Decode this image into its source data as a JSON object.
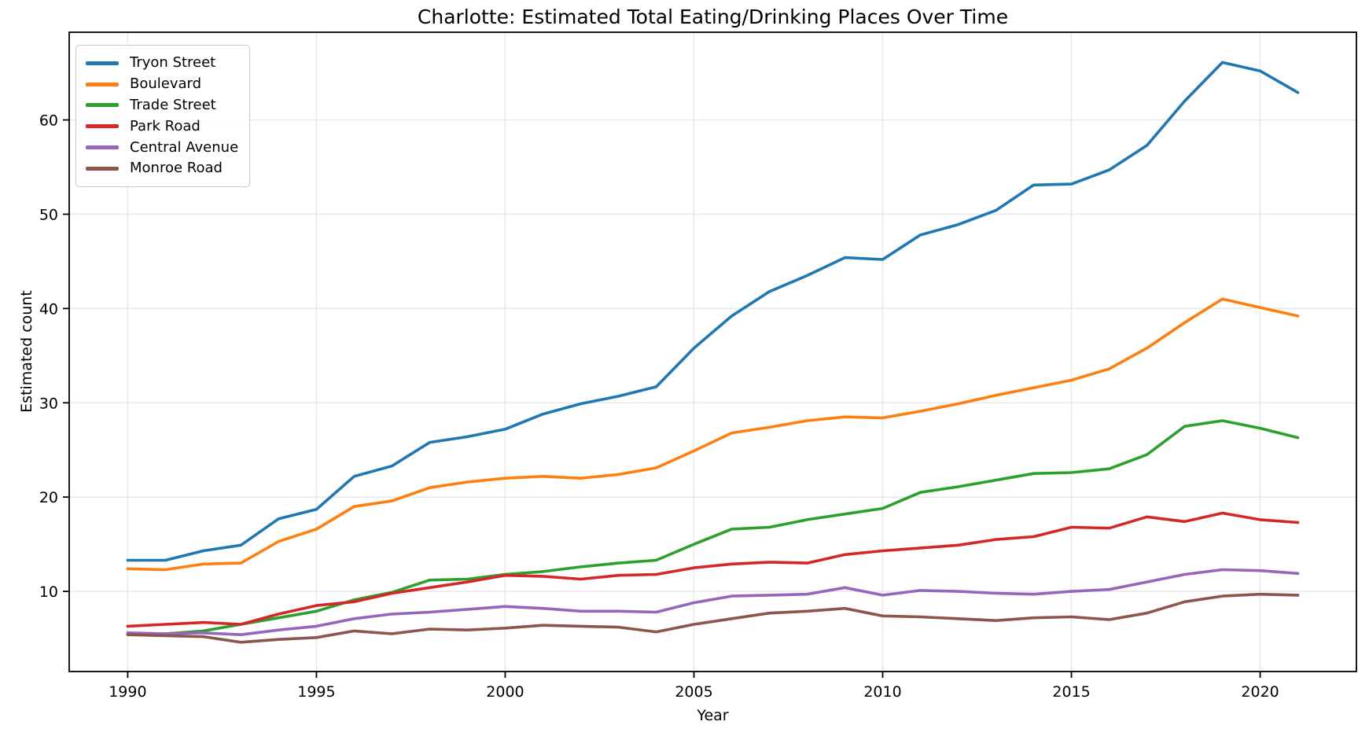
{
  "chart_data": {
    "type": "line",
    "title": "Charlotte: Estimated Total Eating/Drinking Places Over Time",
    "xlabel": "Year",
    "ylabel": "Estimated count",
    "grid": true,
    "legend_position": "upper left",
    "xlim": [
      1988.45,
      2022.55
    ],
    "ylim": [
      1.5,
      69.3
    ],
    "xticks": [
      1990,
      1995,
      2000,
      2005,
      2010,
      2015,
      2020
    ],
    "yticks": [
      10,
      20,
      30,
      40,
      50,
      60
    ],
    "x": [
      1990,
      1991,
      1992,
      1993,
      1994,
      1995,
      1996,
      1997,
      1998,
      1999,
      2000,
      2001,
      2002,
      2003,
      2004,
      2005,
      2006,
      2007,
      2008,
      2009,
      2010,
      2011,
      2012,
      2013,
      2014,
      2015,
      2016,
      2017,
      2018,
      2019,
      2020,
      2021
    ],
    "series": [
      {
        "name": "Tryon Street",
        "color": "#1f77b4",
        "values": [
          13.3,
          13.3,
          14.3,
          14.9,
          17.7,
          18.7,
          22.2,
          23.3,
          25.8,
          26.4,
          27.2,
          28.8,
          29.9,
          30.7,
          31.7,
          35.8,
          39.2,
          41.8,
          43.5,
          45.4,
          45.2,
          47.8,
          48.9,
          50.4,
          53.1,
          53.2,
          54.7,
          57.3,
          62.0,
          66.1,
          65.2,
          62.9
        ]
      },
      {
        "name": "Boulevard",
        "color": "#ff7f0e",
        "values": [
          12.4,
          12.3,
          12.9,
          13.0,
          15.3,
          16.6,
          19.0,
          19.6,
          21.0,
          21.6,
          22.0,
          22.2,
          22.0,
          22.4,
          23.1,
          24.9,
          26.8,
          27.4,
          28.1,
          28.5,
          28.4,
          29.1,
          29.9,
          30.8,
          31.6,
          32.4,
          33.6,
          35.8,
          38.5,
          41.0,
          40.1,
          39.2
        ]
      },
      {
        "name": "Trade Street",
        "color": "#2ca02c",
        "values": [
          5.5,
          5.5,
          5.8,
          6.5,
          7.2,
          7.9,
          9.1,
          9.9,
          11.2,
          11.3,
          11.8,
          12.1,
          12.6,
          13.0,
          13.3,
          15.0,
          16.6,
          16.8,
          17.6,
          18.2,
          18.8,
          20.5,
          21.1,
          21.8,
          22.5,
          22.6,
          23.0,
          24.5,
          27.5,
          28.1,
          27.3,
          26.3
        ]
      },
      {
        "name": "Park Road",
        "color": "#d62728",
        "values": [
          6.3,
          6.5,
          6.7,
          6.5,
          7.6,
          8.5,
          8.9,
          9.8,
          10.4,
          11.0,
          11.7,
          11.6,
          11.3,
          11.7,
          11.8,
          12.5,
          12.9,
          13.1,
          13.0,
          13.9,
          14.3,
          14.6,
          14.9,
          15.5,
          15.8,
          16.8,
          16.7,
          17.9,
          17.4,
          18.3,
          17.6,
          17.3
        ]
      },
      {
        "name": "Central Avenue",
        "color": "#9467bd",
        "values": [
          5.6,
          5.5,
          5.6,
          5.4,
          5.9,
          6.3,
          7.1,
          7.6,
          7.8,
          8.1,
          8.4,
          8.2,
          7.9,
          7.9,
          7.8,
          8.8,
          9.5,
          9.6,
          9.7,
          10.4,
          9.6,
          10.1,
          10.0,
          9.8,
          9.7,
          10.0,
          10.2,
          11.0,
          11.8,
          12.3,
          12.2,
          11.9
        ]
      },
      {
        "name": "Monroe Road",
        "color": "#8c564b",
        "values": [
          5.4,
          5.3,
          5.2,
          4.6,
          4.9,
          5.1,
          5.8,
          5.5,
          6.0,
          5.9,
          6.1,
          6.4,
          6.3,
          6.2,
          5.7,
          6.5,
          7.1,
          7.7,
          7.9,
          8.2,
          7.4,
          7.3,
          7.1,
          6.9,
          7.2,
          7.3,
          7.0,
          7.7,
          8.9,
          9.5,
          9.7,
          9.6
        ]
      }
    ],
    "style": {
      "grid_color": "#e6e6e6",
      "spine_color": "#000000",
      "background": "#ffffff",
      "line_width": 3.6
    }
  }
}
